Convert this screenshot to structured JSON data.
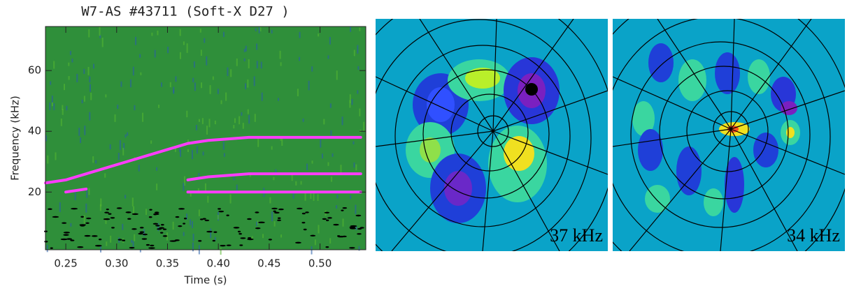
{
  "chart_data": {
    "type": "spectrogram",
    "title": "W7-AS #43711  (Soft-X D27 )",
    "x_label": "Time (s)",
    "y_label": "Frequency (kHz)",
    "x": [
      0.23,
      0.25,
      0.27,
      0.29,
      0.31,
      0.33,
      0.35,
      0.37,
      0.39,
      0.41,
      0.43,
      0.45,
      0.47,
      0.49,
      0.51,
      0.53,
      0.54
    ],
    "series": [
      {
        "color": "#ff3cff",
        "values": [
          23,
          24,
          26,
          28,
          30,
          32,
          34,
          36,
          37,
          37.5,
          38,
          38,
          38,
          38,
          38,
          38,
          38
        ]
      },
      {
        "color": "#ff3cff",
        "values": [
          null,
          null,
          null,
          null,
          null,
          null,
          null,
          24,
          25,
          25.5,
          26,
          26,
          26,
          26,
          26,
          26,
          26
        ]
      },
      {
        "color": "#ff3cff",
        "values": [
          null,
          20,
          21,
          null,
          null,
          null,
          null,
          20,
          20,
          20,
          20,
          20,
          20,
          20,
          20,
          20,
          20
        ]
      }
    ],
    "background": "#2f8f3a",
    "xlim": [
      0.23,
      0.545
    ],
    "ylim": [
      1,
      74.5
    ],
    "xticks": [
      {
        "value": 0.25,
        "label": "0.25"
      },
      {
        "value": 0.3,
        "label": "0.30"
      },
      {
        "value": 0.35,
        "label": "0.35"
      },
      {
        "value": 0.4,
        "label": "0.40"
      },
      {
        "value": 0.45,
        "label": "0.45"
      },
      {
        "value": 0.5,
        "label": "0.50"
      }
    ],
    "yticks": [
      20,
      40,
      60
    ],
    "grid": false
  },
  "panels": [
    {
      "label": "37 kHz"
    },
    {
      "label": "34 kHz"
    }
  ]
}
